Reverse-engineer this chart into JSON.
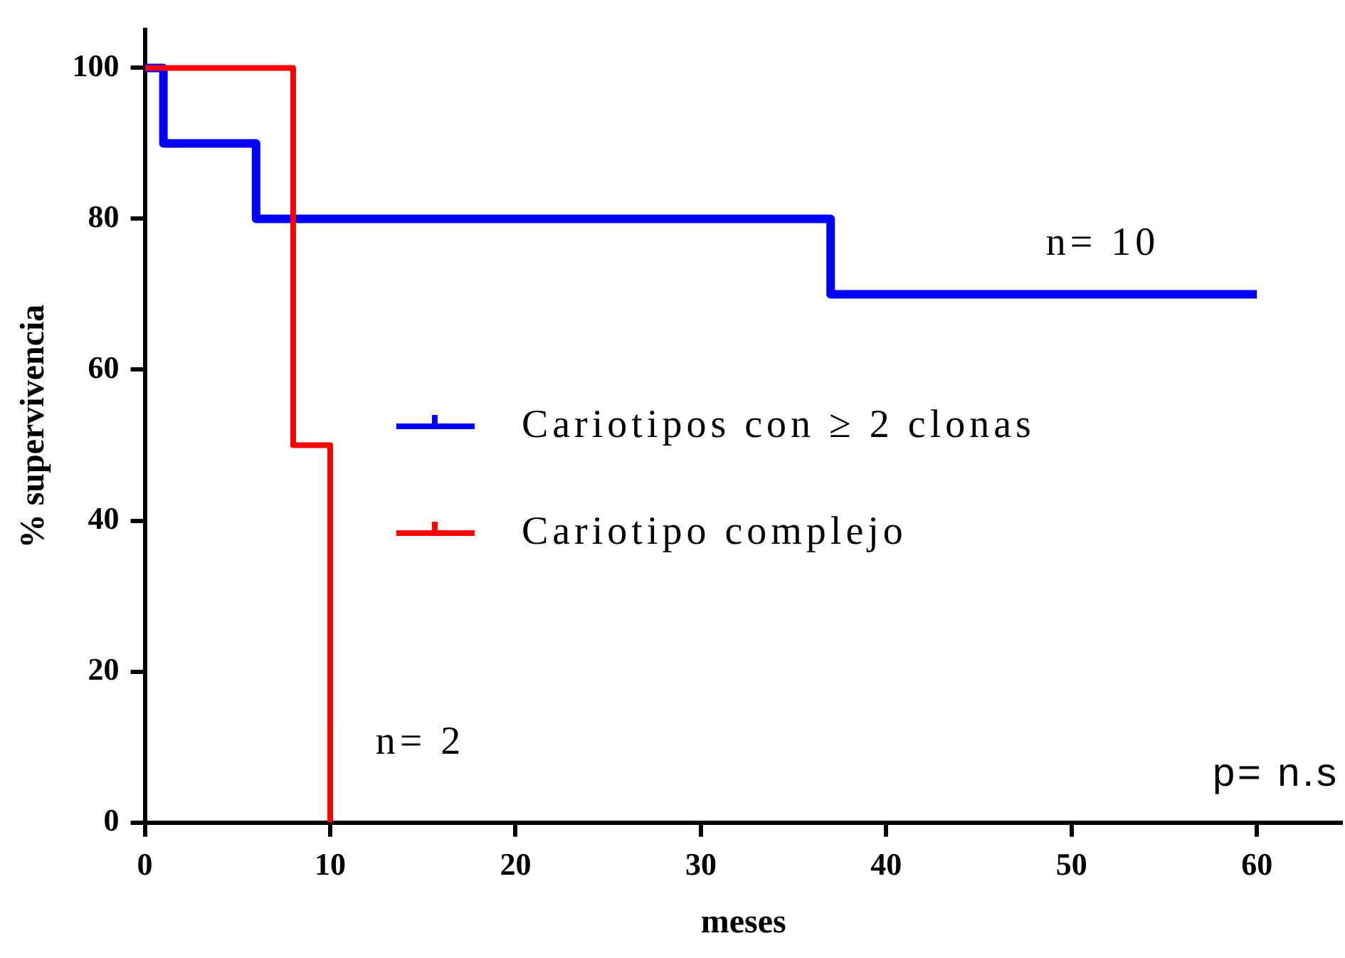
{
  "chart_data": {
    "type": "step",
    "xlabel": "meses",
    "ylabel": "% supervivencia",
    "xlim": [
      0,
      64.6
    ],
    "xticks": [
      0,
      10,
      20,
      30,
      40,
      50,
      60
    ],
    "ylim": [
      0,
      105
    ],
    "yticks": [
      0,
      20,
      40,
      60,
      80,
      100
    ],
    "grid": false,
    "legend": "right",
    "series": [
      {
        "name": "Cariotipos con ≥ 2 clonas",
        "color": "#0000ff",
        "x": [
          0,
          1,
          6,
          37,
          60
        ],
        "values": [
          100,
          90,
          80,
          70,
          70
        ]
      },
      {
        "name": "Cariotipo complejo",
        "color": "#ff0000",
        "x": [
          0,
          8,
          10
        ],
        "values": [
          100,
          50,
          0
        ]
      }
    ],
    "annotations": [
      "n= 10",
      "n= 2",
      "p= n.s"
    ]
  }
}
